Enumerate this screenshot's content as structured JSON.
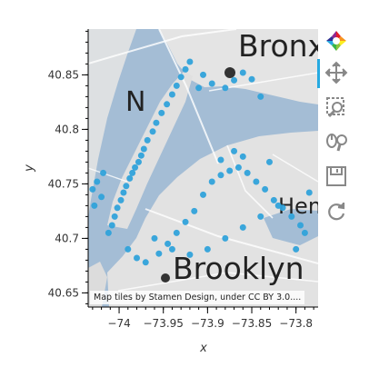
{
  "chart_data": {
    "type": "scatter",
    "title": "",
    "xlabel": "x",
    "ylabel": "y",
    "xlim": [
      -74.035,
      -73.775
    ],
    "ylim": [
      40.637,
      40.892
    ],
    "x_ticks": [
      -74,
      -73.95,
      -73.9,
      -73.85,
      -73.8
    ],
    "x_tick_labels": [
      "−74",
      "−73.95",
      "−73.9",
      "−73.85",
      "−73.8"
    ],
    "y_ticks": [
      40.65,
      40.7,
      40.75,
      40.8,
      40.85
    ],
    "y_tick_labels": [
      "40.65",
      "40.7",
      "40.75",
      "40.8",
      "40.85"
    ],
    "grid": false,
    "marker_color": "#30a2da",
    "series": [
      {
        "color": "#30a2da",
        "points": [
          [
            -74.012,
            40.705
          ],
          [
            -74.008,
            40.712
          ],
          [
            -74.005,
            40.72
          ],
          [
            -74.002,
            40.728
          ],
          [
            -73.998,
            40.735
          ],
          [
            -73.995,
            40.742
          ],
          [
            -73.992,
            40.748
          ],
          [
            -73.988,
            40.755
          ],
          [
            -73.985,
            40.76
          ],
          [
            -73.982,
            40.765
          ],
          [
            -73.978,
            40.77
          ],
          [
            -73.975,
            40.776
          ],
          [
            -73.972,
            40.782
          ],
          [
            -73.968,
            40.79
          ],
          [
            -73.962,
            40.798
          ],
          [
            -73.958,
            40.806
          ],
          [
            -73.952,
            40.815
          ],
          [
            -73.946,
            40.823
          ],
          [
            -73.94,
            40.832
          ],
          [
            -73.935,
            40.84
          ],
          [
            -73.93,
            40.848
          ],
          [
            -73.925,
            40.855
          ],
          [
            -73.92,
            40.862
          ],
          [
            -73.99,
            40.69
          ],
          [
            -73.98,
            40.682
          ],
          [
            -73.97,
            40.678
          ],
          [
            -73.955,
            40.686
          ],
          [
            -73.945,
            40.695
          ],
          [
            -73.935,
            40.705
          ],
          [
            -73.925,
            40.715
          ],
          [
            -73.915,
            40.725
          ],
          [
            -73.905,
            40.74
          ],
          [
            -73.895,
            40.752
          ],
          [
            -73.885,
            40.758
          ],
          [
            -73.875,
            40.762
          ],
          [
            -73.865,
            40.765
          ],
          [
            -73.855,
            40.76
          ],
          [
            -73.845,
            40.752
          ],
          [
            -73.835,
            40.745
          ],
          [
            -73.825,
            40.735
          ],
          [
            -73.815,
            40.728
          ],
          [
            -73.805,
            40.72
          ],
          [
            -73.795,
            40.712
          ],
          [
            -73.96,
            40.7
          ],
          [
            -73.94,
            40.69
          ],
          [
            -73.92,
            40.685
          ],
          [
            -73.9,
            40.69
          ],
          [
            -73.88,
            40.7
          ],
          [
            -73.86,
            40.71
          ],
          [
            -73.84,
            40.72
          ],
          [
            -73.82,
            40.73
          ],
          [
            -73.87,
            40.845
          ],
          [
            -73.86,
            40.852
          ],
          [
            -73.85,
            40.846
          ],
          [
            -73.88,
            40.838
          ],
          [
            -73.895,
            40.842
          ],
          [
            -73.905,
            40.85
          ],
          [
            -73.91,
            40.838
          ],
          [
            -73.84,
            40.83
          ],
          [
            -73.87,
            40.78
          ],
          [
            -73.86,
            40.775
          ],
          [
            -73.885,
            40.772
          ],
          [
            -73.83,
            40.77
          ],
          [
            -73.79,
            40.705
          ],
          [
            -73.785,
            40.742
          ],
          [
            -73.8,
            40.69
          ],
          [
            -74.02,
            40.738
          ],
          [
            -74.025,
            40.752
          ],
          [
            -74.03,
            40.745
          ],
          [
            -74.028,
            40.73
          ],
          [
            -74.018,
            40.76
          ]
        ]
      }
    ]
  },
  "map": {
    "labels": [
      "Bronx",
      "Brooklyn",
      "N",
      "Hem"
    ]
  },
  "attribution": {
    "prefix": "Map tiles by ",
    "link": "Stamen Design",
    "suffix": ", under CC BY 3.0...."
  },
  "toolbar": {
    "tools": [
      {
        "name": "bokeh-logo",
        "active": false
      },
      {
        "name": "pan-tool",
        "active": true
      },
      {
        "name": "box-zoom-tool",
        "active": false
      },
      {
        "name": "wheel-zoom-tool",
        "active": false
      },
      {
        "name": "save-tool",
        "active": false
      },
      {
        "name": "reset-tool",
        "active": false
      }
    ]
  }
}
